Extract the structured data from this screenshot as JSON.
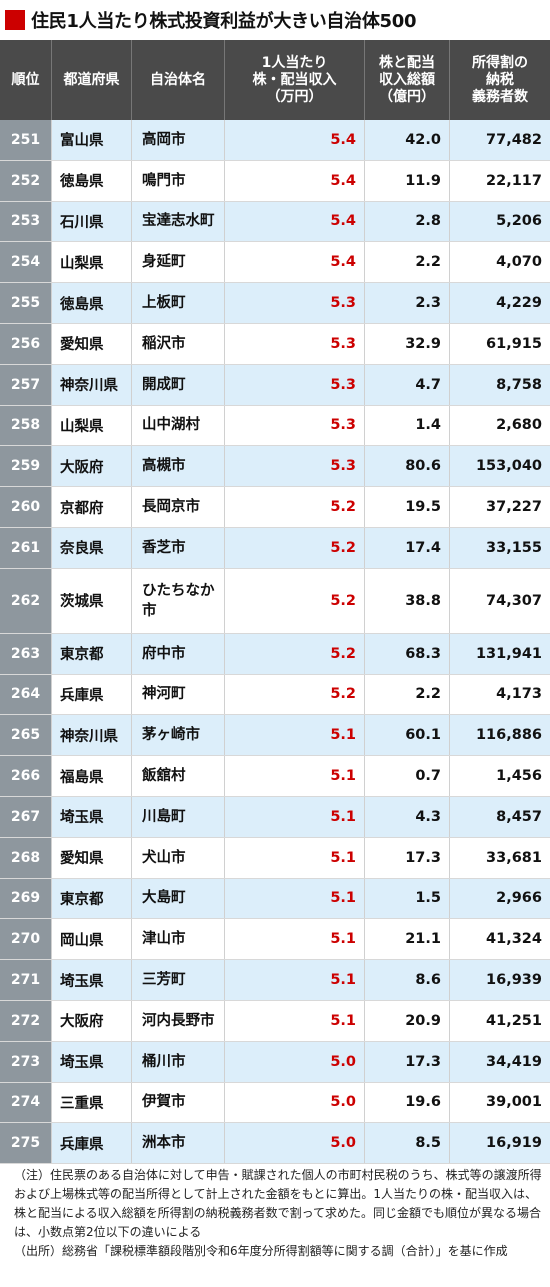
{
  "title": "住民1人当たり株式投資利益が大きい自治体500",
  "headers": {
    "rank": "順位",
    "prefecture": "都道府県",
    "municipality": "自治体名",
    "per_capita": "1人当たり\n株・配当収入\n（万円）",
    "total": "株と配当\n収入総額\n（億円）",
    "taxpayers": "所得割の\n納税\n義務者数"
  },
  "rows": [
    {
      "rank": "251",
      "pref": "富山県",
      "city": "高岡市",
      "per": "5.4",
      "total": "42.0",
      "count": "77,482"
    },
    {
      "rank": "252",
      "pref": "徳島県",
      "city": "鳴門市",
      "per": "5.4",
      "total": "11.9",
      "count": "22,117"
    },
    {
      "rank": "253",
      "pref": "石川県",
      "city": "宝達志水町",
      "per": "5.4",
      "total": "2.8",
      "count": "5,206"
    },
    {
      "rank": "254",
      "pref": "山梨県",
      "city": "身延町",
      "per": "5.4",
      "total": "2.2",
      "count": "4,070"
    },
    {
      "rank": "255",
      "pref": "徳島県",
      "city": "上板町",
      "per": "5.3",
      "total": "2.3",
      "count": "4,229"
    },
    {
      "rank": "256",
      "pref": "愛知県",
      "city": "稲沢市",
      "per": "5.3",
      "total": "32.9",
      "count": "61,915"
    },
    {
      "rank": "257",
      "pref": "神奈川県",
      "city": "開成町",
      "per": "5.3",
      "total": "4.7",
      "count": "8,758"
    },
    {
      "rank": "258",
      "pref": "山梨県",
      "city": "山中湖村",
      "per": "5.3",
      "total": "1.4",
      "count": "2,680"
    },
    {
      "rank": "259",
      "pref": "大阪府",
      "city": "高槻市",
      "per": "5.3",
      "total": "80.6",
      "count": "153,040"
    },
    {
      "rank": "260",
      "pref": "京都府",
      "city": "長岡京市",
      "per": "5.2",
      "total": "19.5",
      "count": "37,227"
    },
    {
      "rank": "261",
      "pref": "奈良県",
      "city": "香芝市",
      "per": "5.2",
      "total": "17.4",
      "count": "33,155"
    },
    {
      "rank": "262",
      "pref": "茨城県",
      "city": "ひたちなか\n市",
      "per": "5.2",
      "total": "38.8",
      "count": "74,307",
      "tall": true
    },
    {
      "rank": "263",
      "pref": "東京都",
      "city": "府中市",
      "per": "5.2",
      "total": "68.3",
      "count": "131,941"
    },
    {
      "rank": "264",
      "pref": "兵庫県",
      "city": "神河町",
      "per": "5.2",
      "total": "2.2",
      "count": "4,173"
    },
    {
      "rank": "265",
      "pref": "神奈川県",
      "city": "茅ヶ崎市",
      "per": "5.1",
      "total": "60.1",
      "count": "116,886"
    },
    {
      "rank": "266",
      "pref": "福島県",
      "city": "飯舘村",
      "per": "5.1",
      "total": "0.7",
      "count": "1,456"
    },
    {
      "rank": "267",
      "pref": "埼玉県",
      "city": "川島町",
      "per": "5.1",
      "total": "4.3",
      "count": "8,457"
    },
    {
      "rank": "268",
      "pref": "愛知県",
      "city": "犬山市",
      "per": "5.1",
      "total": "17.3",
      "count": "33,681"
    },
    {
      "rank": "269",
      "pref": "東京都",
      "city": "大島町",
      "per": "5.1",
      "total": "1.5",
      "count": "2,966"
    },
    {
      "rank": "270",
      "pref": "岡山県",
      "city": "津山市",
      "per": "5.1",
      "total": "21.1",
      "count": "41,324"
    },
    {
      "rank": "271",
      "pref": "埼玉県",
      "city": "三芳町",
      "per": "5.1",
      "total": "8.6",
      "count": "16,939"
    },
    {
      "rank": "272",
      "pref": "大阪府",
      "city": "河内長野市",
      "per": "5.1",
      "total": "20.9",
      "count": "41,251"
    },
    {
      "rank": "273",
      "pref": "埼玉県",
      "city": "桶川市",
      "per": "5.0",
      "total": "17.3",
      "count": "34,419"
    },
    {
      "rank": "274",
      "pref": "三重県",
      "city": "伊賀市",
      "per": "5.0",
      "total": "19.6",
      "count": "39,001"
    },
    {
      "rank": "275",
      "pref": "兵庫県",
      "city": "洲本市",
      "per": "5.0",
      "total": "8.5",
      "count": "16,919"
    }
  ],
  "notes": {
    "note": "（注）住民票のある自治体に対して申告・賦課された個人の市町村民税のうち、株式等の譲渡所得および上場株式等の配当所得として計上された金額をもとに算出。1人当たりの株・配当収入は、株と配当による収入総額を所得割の納税義務者数で割って求めた。同じ金額でも順位が異なる場合は、小数点第2位以下の違いによる",
    "source": "（出所）総務省「課税標準額段階別令和6年度分所得割額等に関する調（合計）」を基に作成"
  },
  "colors": {
    "accent": "#cc0000",
    "header_bg": "#4a4a4a",
    "rank_bg": "#8e979e",
    "row_alt_bg": "#dceefa"
  }
}
